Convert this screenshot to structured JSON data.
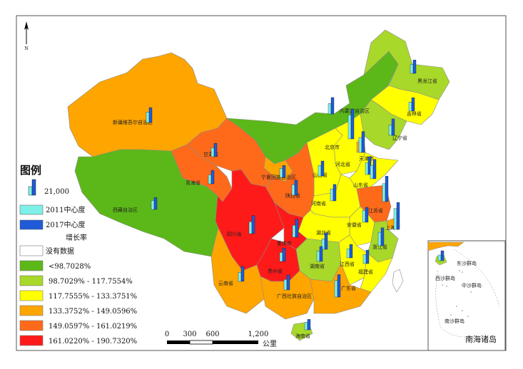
{
  "colors": {
    "no_data": "#ffffff",
    "c1": "#5cb818",
    "c2": "#a8d82a",
    "c3": "#ffff00",
    "c4": "#ffa500",
    "c5": "#ff6a1a",
    "c6": "#ff1a1a",
    "bar2011": "#7ff0e8",
    "bar2017": "#1f5bd6",
    "sea": "#ffffff"
  },
  "north_arrow_label": "N",
  "legend": {
    "title": "图例",
    "bar_value_label": "21,000",
    "series_2011": "2011中心度",
    "series_2017": "2017中心度",
    "growth_label": "增长率",
    "classes": [
      {
        "label": "没有数据",
        "color_key": "no_data"
      },
      {
        "label": "<98.7028%",
        "color_key": "c1"
      },
      {
        "label": "98.7029% - 117.7554%",
        "color_key": "c2"
      },
      {
        "label": "117.7555% - 133.3751%",
        "color_key": "c3"
      },
      {
        "label": "133.3752% - 149.0596%",
        "color_key": "c4"
      },
      {
        "label": "149.0597% - 161.0219%",
        "color_key": "c5"
      },
      {
        "label": "161.0220% - 190.7320%",
        "color_key": "c6"
      }
    ]
  },
  "scalebar": {
    "ticks": [
      "0",
      "300",
      "600",
      "1,200"
    ],
    "unit": "公里"
  },
  "inset": {
    "title": "南海诸岛",
    "labels": [
      "东沙群岛",
      "西沙群岛",
      "中沙群岛",
      "南沙群岛"
    ]
  },
  "provinces": [
    {
      "name": "新疆维吾尔自治区",
      "color_key": "c4",
      "v2011": 0.35,
      "v2017": 0.5
    },
    {
      "name": "西藏自治区",
      "color_key": "c1",
      "v2011": 0.3,
      "v2017": 0.4
    },
    {
      "name": "青海省",
      "color_key": "c5",
      "v2011": 0.3,
      "v2017": 0.45
    },
    {
      "name": "甘肃省",
      "color_key": "c5",
      "v2011": 0.3,
      "v2017": 0.45
    },
    {
      "name": "内蒙古自治区",
      "color_key": "c1",
      "v2011": 0.35,
      "v2017": 0.55
    },
    {
      "name": "黑龙江省",
      "color_key": "c2",
      "v2011": 0.3,
      "v2017": 0.45
    },
    {
      "name": "吉林省",
      "color_key": "c3",
      "v2011": 0.3,
      "v2017": 0.45
    },
    {
      "name": "辽宁省",
      "color_key": "c2",
      "v2011": 0.35,
      "v2017": 0.55
    },
    {
      "name": "北京市",
      "color_key": "c2",
      "v2011": 0.8,
      "v2017": 1.0
    },
    {
      "name": "天津市",
      "color_key": "c4",
      "v2011": 0.5,
      "v2017": 0.7
    },
    {
      "name": "河北省",
      "color_key": "c3",
      "v2011": 0.4,
      "v2017": 0.6
    },
    {
      "name": "山西省",
      "color_key": "c3",
      "v2011": 0.35,
      "v2017": 0.5
    },
    {
      "name": "宁夏回族自治区",
      "color_key": "c4",
      "v2011": 0.3,
      "v2017": 0.4
    },
    {
      "name": "陕西省",
      "color_key": "c5",
      "v2011": 0.35,
      "v2017": 0.5
    },
    {
      "name": "山东省",
      "color_key": "c3",
      "v2011": 0.45,
      "v2017": 0.65
    },
    {
      "name": "河南省",
      "color_key": "c3",
      "v2011": 0.4,
      "v2017": 0.55
    },
    {
      "name": "江苏省",
      "color_key": "c5",
      "v2011": 0.6,
      "v2017": 0.85
    },
    {
      "name": "安徽省",
      "color_key": "c3",
      "v2011": 0.4,
      "v2017": 0.5
    },
    {
      "name": "上海市",
      "color_key": "c4",
      "v2011": 0.7,
      "v2017": 0.9
    },
    {
      "name": "湖北省",
      "color_key": "c3",
      "v2011": 0.35,
      "v2017": 0.55
    },
    {
      "name": "四川省",
      "color_key": "c6",
      "v2011": 0.4,
      "v2017": 0.6
    },
    {
      "name": "重庆市",
      "color_key": "c6",
      "v2011": 0.4,
      "v2017": 0.6
    },
    {
      "name": "浙江省",
      "color_key": "c2",
      "v2011": 0.45,
      "v2017": 0.6
    },
    {
      "name": "湖南省",
      "color_key": "c2",
      "v2011": 0.35,
      "v2017": 0.5
    },
    {
      "name": "江西省",
      "color_key": "c3",
      "v2011": 0.3,
      "v2017": 0.45
    },
    {
      "name": "福建省",
      "color_key": "c3",
      "v2011": 0.3,
      "v2017": 0.45
    },
    {
      "name": "贵州省",
      "color_key": "c6",
      "v2011": 0.3,
      "v2017": 0.45
    },
    {
      "name": "云南省",
      "color_key": "c4",
      "v2011": 0.3,
      "v2017": 0.5
    },
    {
      "name": "广西壮族自治区",
      "color_key": "c4",
      "v2011": 0.35,
      "v2017": 0.5
    },
    {
      "name": "广东省",
      "color_key": "c4",
      "v2011": 0.55,
      "v2017": 0.75
    },
    {
      "name": "海南省",
      "color_key": "c2",
      "v2011": 0.25,
      "v2017": 0.35
    }
  ]
}
